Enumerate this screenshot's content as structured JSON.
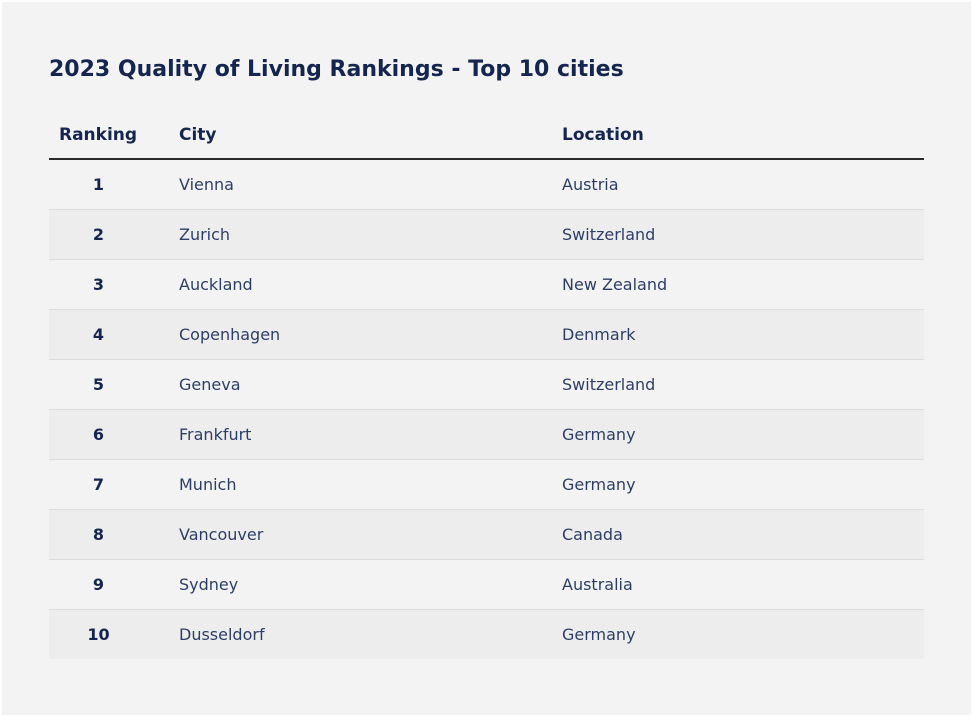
{
  "title": "2023 Quality of Living Rankings - Top 10 cities",
  "table": {
    "headers": {
      "ranking": "Ranking",
      "city": "City",
      "location": "Location"
    },
    "rows": [
      {
        "rank": "1",
        "city": "Vienna",
        "location": "Austria"
      },
      {
        "rank": "2",
        "city": "Zurich",
        "location": "Switzerland"
      },
      {
        "rank": "3",
        "city": "Auckland",
        "location": "New Zealand"
      },
      {
        "rank": "4",
        "city": "Copenhagen",
        "location": "Denmark"
      },
      {
        "rank": "5",
        "city": "Geneva",
        "location": "Switzerland"
      },
      {
        "rank": "6",
        "city": "Frankfurt",
        "location": "Germany"
      },
      {
        "rank": "7",
        "city": "Munich",
        "location": "Germany"
      },
      {
        "rank": "8",
        "city": "Vancouver",
        "location": "Canada"
      },
      {
        "rank": "9",
        "city": "Sydney",
        "location": "Australia"
      },
      {
        "rank": "10",
        "city": "Dusseldorf",
        "location": "Germany"
      }
    ]
  },
  "colors": {
    "heading": "#14264f",
    "text": "#2d3e66",
    "background": "#f3f3f3",
    "stripe": "#ededed"
  }
}
